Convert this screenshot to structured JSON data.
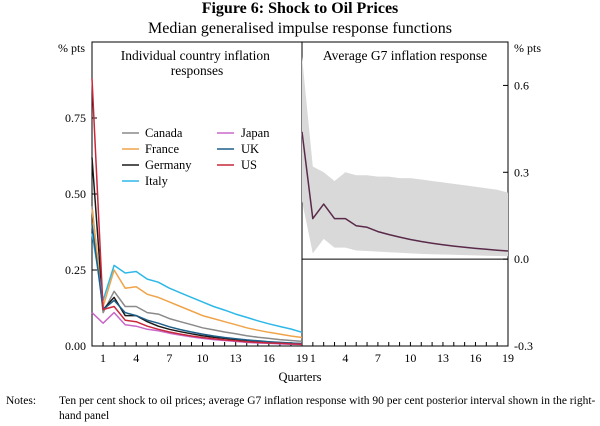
{
  "figure": {
    "title": "Figure 6: Shock to Oil Prices",
    "subtitle": "Median generalised impulse response functions",
    "xlabel": "Quarters",
    "notes_label": "Notes:",
    "notes_text": "Ten per cent shock to oil prices; average G7 inflation response with 90 per cent posterior interval shown in the right-hand panel"
  },
  "chart_data": [
    {
      "type": "line",
      "title": "Individual country inflation responses",
      "ylabel": "% pts",
      "ylim": [
        0,
        1.0
      ],
      "yticks": [
        "0.00",
        "0.25",
        "0.50",
        "0.75"
      ],
      "xlim": [
        0,
        19
      ],
      "xticks": [
        "1",
        "4",
        "7",
        "10",
        "13",
        "16",
        "19"
      ],
      "legend": "center-left",
      "series": [
        {
          "name": "Canada",
          "color": "#8a8a8a",
          "x": [
            0,
            1,
            2,
            3,
            4,
            5,
            6,
            7,
            8,
            9,
            10,
            11,
            12,
            13,
            14,
            15,
            16,
            17,
            18,
            19
          ],
          "values": [
            0.46,
            0.11,
            0.18,
            0.13,
            0.13,
            0.11,
            0.105,
            0.09,
            0.08,
            0.07,
            0.06,
            0.053,
            0.046,
            0.04,
            0.034,
            0.029,
            0.025,
            0.021,
            0.018,
            0.015
          ]
        },
        {
          "name": "France",
          "color": "#f0a44a",
          "x": [
            0,
            1,
            2,
            3,
            4,
            5,
            6,
            7,
            8,
            9,
            10,
            11,
            12,
            13,
            14,
            15,
            16,
            17,
            18,
            19
          ],
          "values": [
            0.45,
            0.13,
            0.25,
            0.19,
            0.195,
            0.17,
            0.16,
            0.145,
            0.13,
            0.115,
            0.1,
            0.09,
            0.08,
            0.07,
            0.06,
            0.052,
            0.045,
            0.039,
            0.033,
            0.028
          ]
        },
        {
          "name": "Germany",
          "color": "#1a1a1a",
          "x": [
            0,
            1,
            2,
            3,
            4,
            5,
            6,
            7,
            8,
            9,
            10,
            11,
            12,
            13,
            14,
            15,
            16,
            17,
            18,
            19
          ],
          "values": [
            0.62,
            0.12,
            0.16,
            0.1,
            0.1,
            0.08,
            0.065,
            0.055,
            0.047,
            0.04,
            0.034,
            0.029,
            0.025,
            0.021,
            0.018,
            0.015,
            0.013,
            0.011,
            0.009,
            0.008
          ]
        },
        {
          "name": "Italy",
          "color": "#2eb8e8",
          "x": [
            0,
            1,
            2,
            3,
            4,
            5,
            6,
            7,
            8,
            9,
            10,
            11,
            12,
            13,
            14,
            15,
            16,
            17,
            18,
            19
          ],
          "values": [
            0.37,
            0.15,
            0.265,
            0.24,
            0.245,
            0.22,
            0.21,
            0.19,
            0.175,
            0.16,
            0.145,
            0.13,
            0.118,
            0.105,
            0.094,
            0.083,
            0.073,
            0.064,
            0.056,
            0.045
          ]
        },
        {
          "name": "Japan",
          "color": "#c868c8",
          "x": [
            0,
            1,
            2,
            3,
            4,
            5,
            6,
            7,
            8,
            9,
            10,
            11,
            12,
            13,
            14,
            15,
            16,
            17,
            18,
            19
          ],
          "values": [
            0.11,
            0.075,
            0.11,
            0.07,
            0.065,
            0.055,
            0.05,
            0.042,
            0.036,
            0.03,
            0.025,
            0.021,
            0.018,
            0.015,
            0.012,
            0.01,
            0.009,
            0.007,
            0.006,
            0.005
          ]
        },
        {
          "name": "UK",
          "color": "#1f5f8a",
          "x": [
            0,
            1,
            2,
            3,
            4,
            5,
            6,
            7,
            8,
            9,
            10,
            11,
            12,
            13,
            14,
            15,
            16,
            17,
            18,
            19
          ],
          "values": [
            0.4,
            0.12,
            0.15,
            0.11,
            0.1,
            0.085,
            0.075,
            0.063,
            0.054,
            0.046,
            0.039,
            0.033,
            0.028,
            0.024,
            0.02,
            0.017,
            0.014,
            0.012,
            0.01,
            0.008
          ]
        },
        {
          "name": "US",
          "color": "#c8283c",
          "x": [
            0,
            1,
            2,
            3,
            4,
            5,
            6,
            7,
            8,
            9,
            10,
            11,
            12,
            13,
            14,
            15,
            16,
            17,
            18,
            19
          ],
          "values": [
            0.88,
            0.12,
            0.13,
            0.085,
            0.08,
            0.065,
            0.055,
            0.046,
            0.039,
            0.033,
            0.028,
            0.024,
            0.02,
            0.017,
            0.014,
            0.012,
            0.01,
            0.009,
            0.007,
            0.006
          ]
        }
      ]
    },
    {
      "type": "area",
      "title": "Average G7 inflation response",
      "ylabel": "% pts",
      "ylim": [
        -0.3,
        0.75
      ],
      "yticks": [
        "-0.3",
        "0.0",
        "0.3",
        "0.6"
      ],
      "xlim": [
        0,
        19
      ],
      "xticks": [
        "1",
        "4",
        "7",
        "10",
        "13",
        "16",
        "19"
      ],
      "series": [
        {
          "name": "Median",
          "color": "#5a2a4a",
          "x": [
            0,
            1,
            2,
            3,
            4,
            5,
            6,
            7,
            8,
            9,
            10,
            11,
            12,
            13,
            14,
            15,
            16,
            17,
            18,
            19
          ],
          "values": [
            0.44,
            0.14,
            0.19,
            0.14,
            0.14,
            0.115,
            0.11,
            0.095,
            0.085,
            0.076,
            0.068,
            0.061,
            0.055,
            0.05,
            0.045,
            0.041,
            0.037,
            0.034,
            0.031,
            0.028
          ]
        }
      ],
      "interval": {
        "name": "90 per cent posterior interval",
        "color": "#d9d9d9",
        "upper": [
          0.7,
          0.32,
          0.3,
          0.27,
          0.3,
          0.29,
          0.29,
          0.285,
          0.285,
          0.28,
          0.28,
          0.275,
          0.27,
          0.265,
          0.26,
          0.255,
          0.25,
          0.245,
          0.24,
          0.23
        ],
        "lower": [
          0.2,
          0.02,
          0.07,
          0.04,
          0.04,
          0.03,
          0.028,
          0.026,
          0.024,
          0.022,
          0.02,
          0.018,
          0.017,
          0.016,
          0.015,
          0.014,
          0.013,
          0.012,
          0.011,
          0.01
        ]
      }
    }
  ]
}
